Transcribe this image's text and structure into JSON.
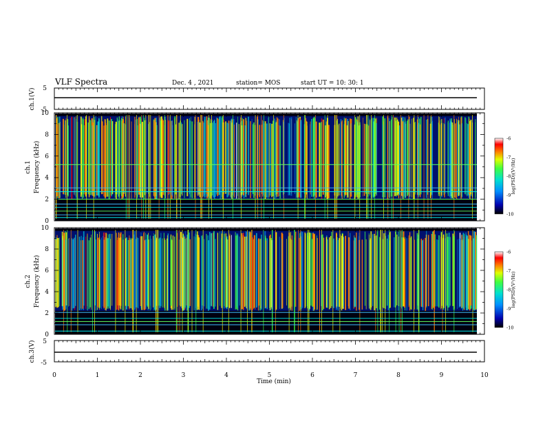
{
  "title": {
    "main": "VLF Spectra",
    "date": "Dec. 4 , 2021",
    "station": "station= MOS",
    "start": "start UT =  10: 30: 1"
  },
  "chart_data": [
    {
      "type": "line",
      "name": "ch1-voltage",
      "ylabel": "ch.1(V)",
      "ylim": [
        -5,
        5
      ],
      "ytick_labels": [
        "5",
        "-5"
      ],
      "baseline_value": 0
    },
    {
      "type": "heatmap",
      "name": "ch1-spectrogram",
      "ylabel": "ch.1\nFrequency (kHz)",
      "ylabel_line1": "ch.1",
      "ylabel_line2": "Frequency (kHz)",
      "ylim": [
        0,
        10
      ],
      "ytick_labels": [
        "0",
        "2",
        "4",
        "6",
        "8",
        "10"
      ],
      "colorbar": {
        "label": "log(PSD)(V²/Hz)",
        "range": [
          -10,
          -6
        ],
        "tick_labels": [
          "-6",
          "-7",
          "-8",
          "-9",
          "-10"
        ]
      },
      "hum_lines_khz": [
        0.3,
        0.55,
        0.9,
        1.25,
        1.55,
        2.0,
        2.7,
        3.05,
        5.2
      ]
    },
    {
      "type": "heatmap",
      "name": "ch2-spectrogram",
      "ylabel": "ch.2\nFrequency (kHz)",
      "ylabel_line1": "ch.2",
      "ylabel_line2": "Frequency (kHz)",
      "ylim": [
        0,
        10
      ],
      "ytick_labels": [
        "0",
        "2",
        "4",
        "6",
        "8",
        "10"
      ],
      "colorbar": {
        "label": "log(PSD)(V²/Hz)",
        "range": [
          -10,
          -6
        ],
        "tick_labels": [
          "-6",
          "-7",
          "-8",
          "-9",
          "-10"
        ]
      },
      "hum_lines_khz": [
        0.3,
        0.9,
        1.2,
        1.5,
        2.05
      ]
    },
    {
      "type": "line",
      "name": "ch3-voltage",
      "ylabel": "ch.3(V)",
      "ylim": [
        -5,
        5
      ],
      "ytick_labels": [
        "5",
        "-5"
      ],
      "baseline_value": 0
    }
  ],
  "xaxis": {
    "label": "Time (min)",
    "range": [
      0,
      10
    ],
    "tick_labels": [
      "0",
      "1",
      "2",
      "3",
      "4",
      "5",
      "6",
      "7",
      "8",
      "9",
      "10"
    ]
  },
  "colors": {
    "background": "#000000",
    "colormap": [
      "#000020",
      "#0000c8",
      "#00a0ff",
      "#00e8e8",
      "#40ff40",
      "#ffff00",
      "#ff8000",
      "#ff0000",
      "#ffffff"
    ]
  }
}
